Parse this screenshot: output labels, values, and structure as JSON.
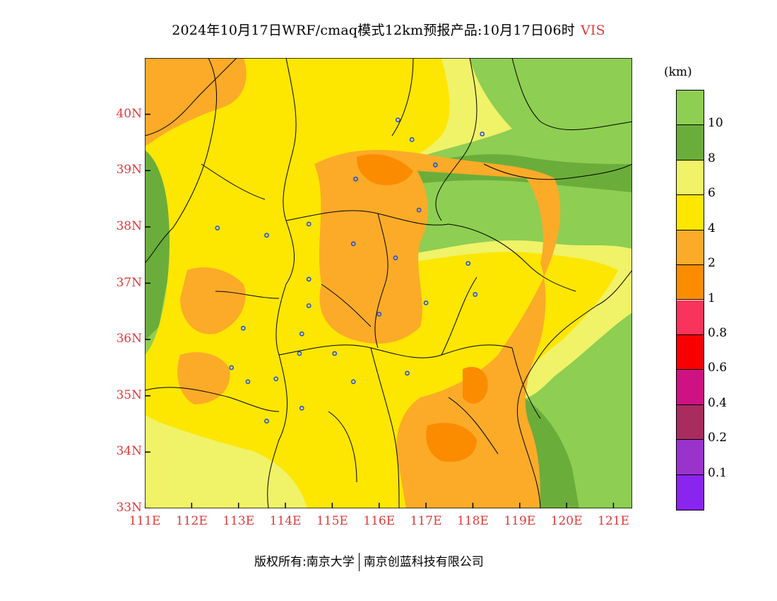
{
  "title": "2024年10月17日WRF/cmaq模式12km预报产品:10月17日06时",
  "variable": "VIS",
  "map": {
    "lon_range": [
      111,
      121.4
    ],
    "lat_range": [
      33,
      41
    ],
    "lat_ticks": [
      "33N",
      "34N",
      "35N",
      "36N",
      "37N",
      "38N",
      "39N",
      "40N"
    ],
    "lon_ticks": [
      "111E",
      "112E",
      "113E",
      "114E",
      "115E",
      "116E",
      "117E",
      "118E",
      "119E",
      "120E",
      "121E"
    ],
    "cities": [
      [
        116.4,
        39.9
      ],
      [
        118.2,
        39.65
      ],
      [
        116.7,
        39.55
      ],
      [
        117.2,
        39.1
      ],
      [
        115.5,
        38.85
      ],
      [
        116.85,
        38.3
      ],
      [
        112.55,
        37.98
      ],
      [
        113.6,
        37.85
      ],
      [
        114.5,
        38.05
      ],
      [
        115.45,
        37.7
      ],
      [
        116.35,
        37.45
      ],
      [
        117.9,
        37.35
      ],
      [
        114.5,
        37.07
      ],
      [
        114.5,
        36.6
      ],
      [
        116.0,
        36.45
      ],
      [
        117.0,
        36.65
      ],
      [
        118.05,
        36.8
      ],
      [
        113.1,
        36.2
      ],
      [
        114.35,
        36.1
      ],
      [
        114.3,
        35.75
      ],
      [
        115.05,
        35.75
      ],
      [
        112.85,
        35.5
      ],
      [
        113.2,
        35.25
      ],
      [
        113.8,
        35.3
      ],
      [
        115.45,
        35.25
      ],
      [
        116.6,
        35.4
      ],
      [
        114.35,
        34.78
      ],
      [
        113.6,
        34.55
      ]
    ],
    "colors": {
      "gt10": "#8ece52",
      "8_10": "#6bad3b",
      "6_8": "#f0f268",
      "4_6": "#fde600",
      "2_4": "#fbab28",
      "1_2": "#fb8c00",
      "border": "#000000",
      "city": "#1f4fe0"
    }
  },
  "legend": {
    "unit": "(km)",
    "levels": [
      "10",
      "8",
      "6",
      "4",
      "2",
      "1",
      "0.8",
      "0.6",
      "0.4",
      "0.2",
      "0.1"
    ],
    "swatches": [
      "#8ece52",
      "#6bad3b",
      "#f0f268",
      "#fde600",
      "#fbab28",
      "#fb8c00",
      "#f9335b",
      "#f90000",
      "#cf1283",
      "#a82c5e",
      "#9933cc",
      "#8a24ef"
    ]
  },
  "copyright": {
    "left": "版权所有:南京大学",
    "right": "南京创蓝科技有限公司"
  }
}
